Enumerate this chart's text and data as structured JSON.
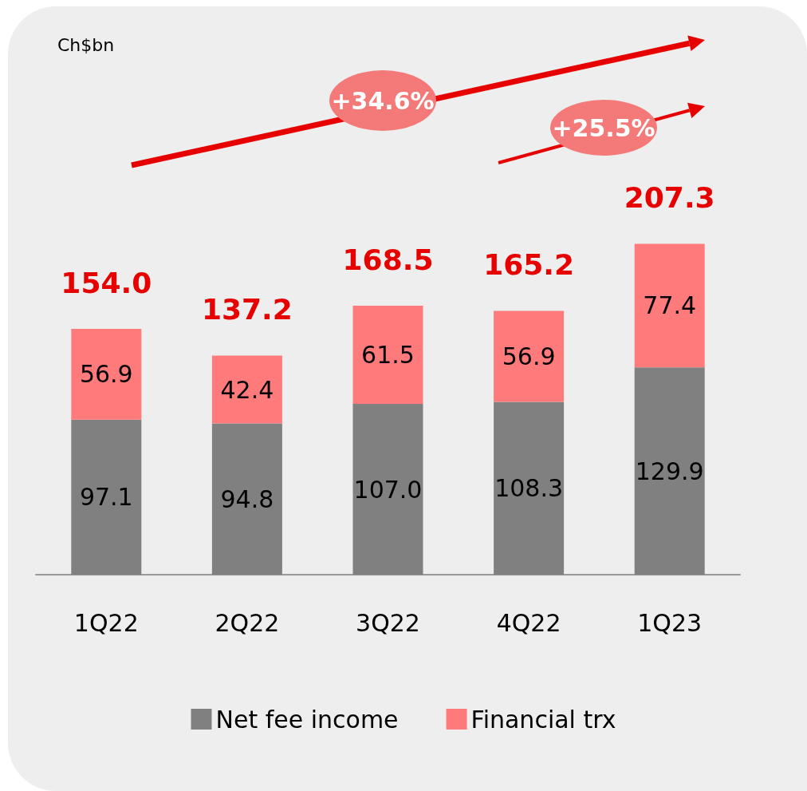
{
  "chart_data": {
    "type": "bar",
    "stacked": true,
    "legend": "bottom",
    "grid": false,
    "categories": [
      "1Q22",
      "2Q22",
      "3Q22",
      "4Q22",
      "1Q23"
    ],
    "series": [
      {
        "name": "Net fee income",
        "color": "#808080",
        "values": [
          97.1,
          94.8,
          107.0,
          108.3,
          129.9
        ],
        "value_labels": [
          "97.1",
          "94.8",
          "107.0",
          "108.3",
          "129.9"
        ]
      },
      {
        "name": "Financial trx",
        "color": "#ff7b7b",
        "values": [
          56.9,
          42.4,
          61.5,
          56.9,
          77.4
        ],
        "value_labels": [
          "56.9",
          "42.4",
          "61.5",
          "56.9",
          "77.4"
        ]
      }
    ],
    "totals": [
      "154.0",
      "137.2",
      "168.5",
      "165.2",
      "207.3"
    ],
    "annotations": [
      "Ch$bn",
      "+34.6%",
      "+25.5%"
    ]
  }
}
